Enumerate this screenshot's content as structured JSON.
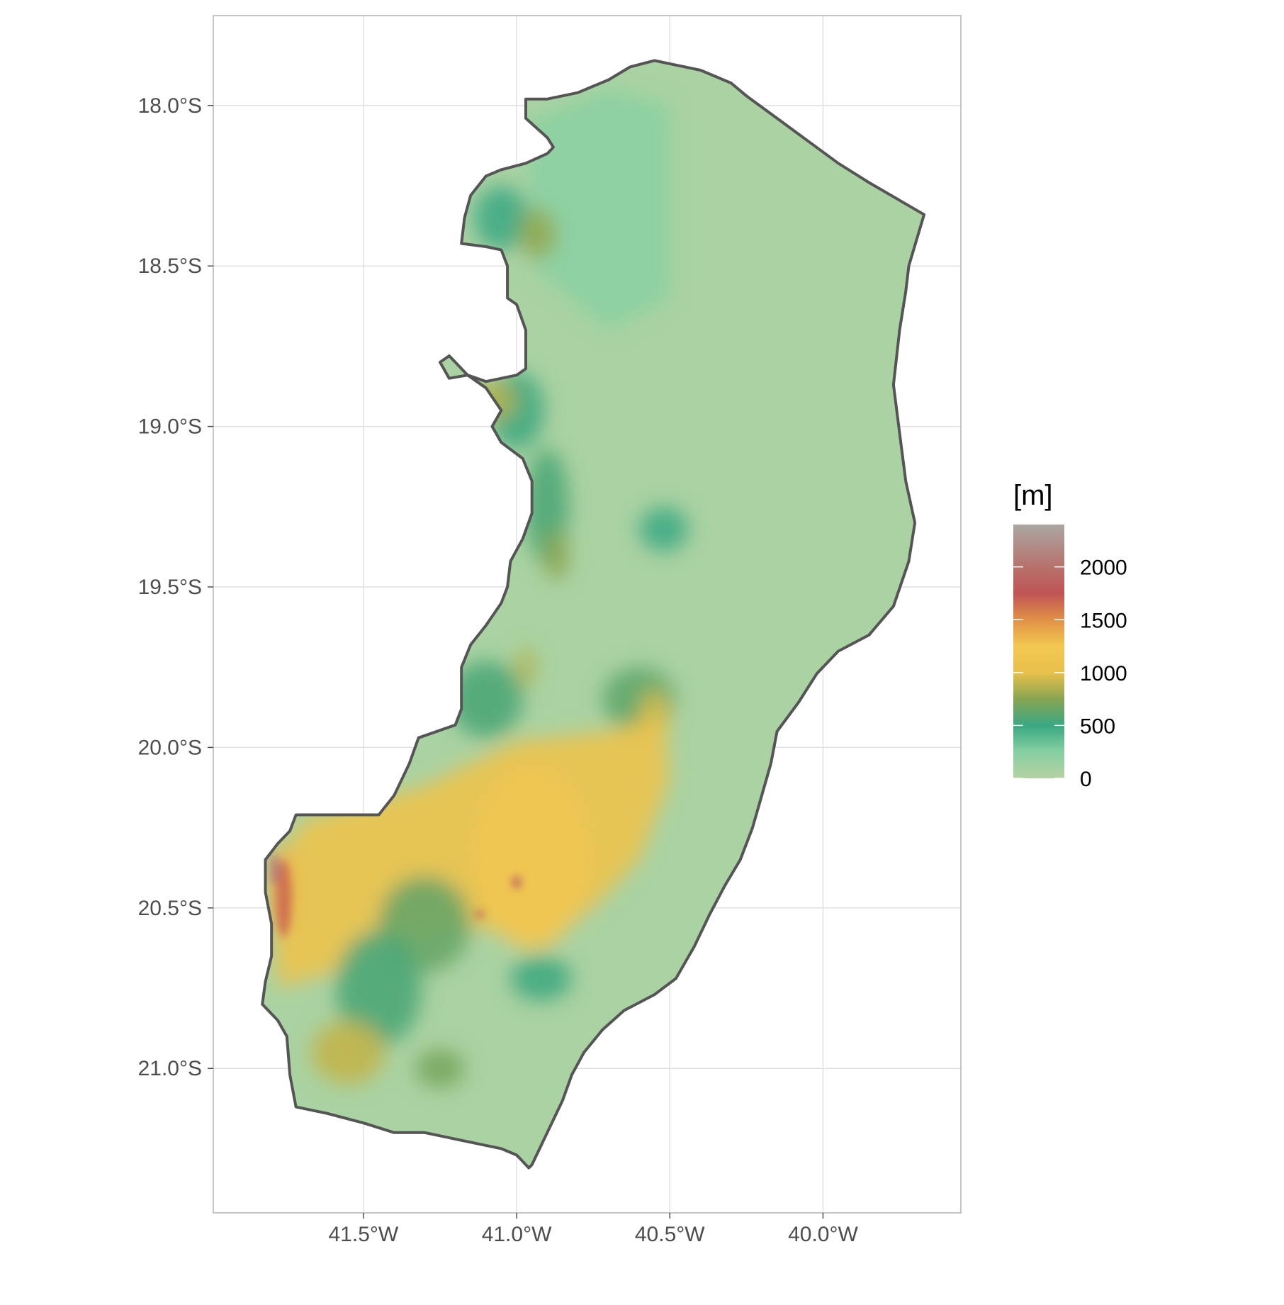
{
  "chart_data": {
    "type": "heatmap",
    "title": "",
    "xlabel": "",
    "ylabel": "",
    "x_ticks": [
      {
        "lon": -41.5,
        "label": "41.5°W"
      },
      {
        "lon": -41.0,
        "label": "41.0°W"
      },
      {
        "lon": -40.5,
        "label": "40.5°W"
      },
      {
        "lon": -40.0,
        "label": "40.0°W"
      }
    ],
    "y_ticks": [
      {
        "lat": -18.0,
        "label": "18.0°S"
      },
      {
        "lat": -18.5,
        "label": "18.5°S"
      },
      {
        "lat": -19.0,
        "label": "19.0°S"
      },
      {
        "lat": -19.5,
        "label": "19.5°S"
      },
      {
        "lat": -20.0,
        "label": "20.0°S"
      },
      {
        "lat": -20.5,
        "label": "20.5°S"
      },
      {
        "lat": -21.0,
        "label": "21.0°S"
      }
    ],
    "xlim": [
      -41.99,
      -39.55
    ],
    "ylim": [
      -21.45,
      -17.72
    ],
    "grid": true,
    "legend": {
      "title": "[m]",
      "position": "right",
      "min": 0,
      "max": 2400,
      "breaks": [
        {
          "value": 0,
          "label": "0"
        },
        {
          "value": 500,
          "label": "500"
        },
        {
          "value": 1000,
          "label": "1000"
        },
        {
          "value": 1500,
          "label": "1500"
        },
        {
          "value": 2000,
          "label": "2000"
        }
      ],
      "color_stops": [
        {
          "value": 0,
          "color": "#b5d2a2"
        },
        {
          "value": 250,
          "color": "#86d0a2"
        },
        {
          "value": 500,
          "color": "#3aa883"
        },
        {
          "value": 750,
          "color": "#88a552"
        },
        {
          "value": 1000,
          "color": "#e9c04c"
        },
        {
          "value": 1250,
          "color": "#f3c752"
        },
        {
          "value": 1500,
          "color": "#e19146"
        },
        {
          "value": 1750,
          "color": "#c05456"
        },
        {
          "value": 2000,
          "color": "#b7726b"
        },
        {
          "value": 2400,
          "color": "#aaa6a2"
        }
      ]
    },
    "boundary": [
      [
        -40.9,
        -17.98
      ],
      [
        -40.8,
        -17.96
      ],
      [
        -40.75,
        -17.94
      ],
      [
        -40.7,
        -17.92
      ],
      [
        -40.63,
        -17.88
      ],
      [
        -40.55,
        -17.86
      ],
      [
        -40.5,
        -17.87
      ],
      [
        -40.4,
        -17.89
      ],
      [
        -40.3,
        -17.93
      ],
      [
        -40.25,
        -17.97
      ],
      [
        -40.15,
        -18.04
      ],
      [
        -40.05,
        -18.11
      ],
      [
        -39.95,
        -18.18
      ],
      [
        -39.85,
        -18.24
      ],
      [
        -39.67,
        -18.34
      ],
      [
        -39.72,
        -18.5
      ],
      [
        -39.73,
        -18.58
      ],
      [
        -39.75,
        -18.7
      ],
      [
        -39.77,
        -18.87
      ],
      [
        -39.75,
        -19.02
      ],
      [
        -39.73,
        -19.17
      ],
      [
        -39.7,
        -19.3
      ],
      [
        -39.72,
        -19.42
      ],
      [
        -39.77,
        -19.56
      ],
      [
        -39.85,
        -19.65
      ],
      [
        -39.95,
        -19.7
      ],
      [
        -40.02,
        -19.77
      ],
      [
        -40.08,
        -19.86
      ],
      [
        -40.15,
        -19.95
      ],
      [
        -40.17,
        -20.05
      ],
      [
        -40.2,
        -20.15
      ],
      [
        -40.23,
        -20.25
      ],
      [
        -40.27,
        -20.35
      ],
      [
        -40.32,
        -20.43
      ],
      [
        -40.37,
        -20.52
      ],
      [
        -40.42,
        -20.62
      ],
      [
        -40.48,
        -20.72
      ],
      [
        -40.55,
        -20.77
      ],
      [
        -40.65,
        -20.82
      ],
      [
        -40.72,
        -20.88
      ],
      [
        -40.78,
        -20.95
      ],
      [
        -40.82,
        -21.02
      ],
      [
        -40.85,
        -21.1
      ],
      [
        -40.9,
        -21.2
      ],
      [
        -40.95,
        -21.3
      ],
      [
        -40.96,
        -21.31
      ],
      [
        -41.0,
        -21.27
      ],
      [
        -41.05,
        -21.25
      ],
      [
        -41.1,
        -21.24
      ],
      [
        -41.2,
        -21.22
      ],
      [
        -41.3,
        -21.2
      ],
      [
        -41.4,
        -21.2
      ],
      [
        -41.5,
        -21.17
      ],
      [
        -41.62,
        -21.14
      ],
      [
        -41.72,
        -21.12
      ],
      [
        -41.74,
        -21.02
      ],
      [
        -41.75,
        -20.9
      ],
      [
        -41.78,
        -20.85
      ],
      [
        -41.83,
        -20.8
      ],
      [
        -41.82,
        -20.73
      ],
      [
        -41.8,
        -20.65
      ],
      [
        -41.8,
        -20.55
      ],
      [
        -41.82,
        -20.45
      ],
      [
        -41.82,
        -20.35
      ],
      [
        -41.78,
        -20.3
      ],
      [
        -41.74,
        -20.26
      ],
      [
        -41.72,
        -20.21
      ],
      [
        -41.6,
        -20.21
      ],
      [
        -41.45,
        -20.21
      ],
      [
        -41.4,
        -20.15
      ],
      [
        -41.35,
        -20.05
      ],
      [
        -41.32,
        -19.97
      ],
      [
        -41.2,
        -19.93
      ],
      [
        -41.18,
        -19.88
      ],
      [
        -41.18,
        -19.75
      ],
      [
        -41.15,
        -19.68
      ],
      [
        -41.1,
        -19.62
      ],
      [
        -41.05,
        -19.55
      ],
      [
        -41.03,
        -19.5
      ],
      [
        -41.02,
        -19.42
      ],
      [
        -40.98,
        -19.35
      ],
      [
        -40.95,
        -19.27
      ],
      [
        -40.95,
        -19.17
      ],
      [
        -40.98,
        -19.1
      ],
      [
        -41.05,
        -19.05
      ],
      [
        -41.08,
        -19.0
      ],
      [
        -41.05,
        -18.95
      ],
      [
        -41.1,
        -18.88
      ],
      [
        -41.16,
        -18.84
      ],
      [
        -41.22,
        -18.85
      ],
      [
        -41.25,
        -18.8
      ],
      [
        -41.22,
        -18.78
      ],
      [
        -41.2,
        -18.8
      ],
      [
        -41.16,
        -18.84
      ],
      [
        -41.1,
        -18.86
      ],
      [
        -41.0,
        -18.84
      ],
      [
        -40.97,
        -18.82
      ],
      [
        -40.97,
        -18.7
      ],
      [
        -41.0,
        -18.62
      ],
      [
        -41.03,
        -18.6
      ],
      [
        -41.03,
        -18.5
      ],
      [
        -41.05,
        -18.45
      ],
      [
        -41.1,
        -18.44
      ],
      [
        -41.18,
        -18.43
      ],
      [
        -41.17,
        -18.35
      ],
      [
        -41.15,
        -18.28
      ],
      [
        -41.1,
        -18.22
      ],
      [
        -41.05,
        -18.2
      ],
      [
        -40.97,
        -18.18
      ],
      [
        -40.9,
        -18.15
      ],
      [
        -40.88,
        -18.13
      ],
      [
        -40.9,
        -18.1
      ],
      [
        -40.97,
        -18.04
      ],
      [
        -40.97,
        -17.98
      ]
    ],
    "regions": [
      {
        "elevation": 220,
        "shape": "polygon",
        "points": [
          [
            -40.97,
            -18.05
          ],
          [
            -40.7,
            -17.95
          ],
          [
            -40.5,
            -18.0
          ],
          [
            -40.5,
            -18.6
          ],
          [
            -40.7,
            -18.7
          ],
          [
            -40.95,
            -18.5
          ]
        ]
      },
      {
        "elevation": 480,
        "shape": "ellipse",
        "center": [
          -41.05,
          -18.35
        ],
        "radius": [
          0.09,
          0.1
        ]
      },
      {
        "elevation": 780,
        "shape": "ellipse",
        "center": [
          -40.93,
          -18.4
        ],
        "radius": [
          0.06,
          0.08
        ]
      },
      {
        "elevation": 520,
        "shape": "ellipse",
        "center": [
          -41.0,
          -18.95
        ],
        "radius": [
          0.09,
          0.12
        ]
      },
      {
        "elevation": 860,
        "shape": "ellipse",
        "center": [
          -41.08,
          -18.92
        ],
        "radius": [
          0.08,
          0.06
        ]
      },
      {
        "elevation": 560,
        "shape": "ellipse",
        "center": [
          -40.9,
          -19.25
        ],
        "radius": [
          0.07,
          0.18
        ]
      },
      {
        "elevation": 760,
        "shape": "ellipse",
        "center": [
          -40.87,
          -19.4
        ],
        "radius": [
          0.04,
          0.08
        ]
      },
      {
        "elevation": 480,
        "shape": "ellipse",
        "center": [
          -40.52,
          -19.32
        ],
        "radius": [
          0.08,
          0.07
        ]
      },
      {
        "elevation": 560,
        "shape": "ellipse",
        "center": [
          -41.1,
          -19.85
        ],
        "radius": [
          0.12,
          0.12
        ]
      },
      {
        "elevation": 860,
        "shape": "ellipse",
        "center": [
          -40.97,
          -19.75
        ],
        "radius": [
          0.03,
          0.06
        ]
      },
      {
        "elevation": 620,
        "shape": "ellipse",
        "center": [
          -40.6,
          -19.85
        ],
        "radius": [
          0.12,
          0.1
        ]
      },
      {
        "elevation": 940,
        "shape": "ellipse",
        "center": [
          -40.55,
          -19.9
        ],
        "radius": [
          0.05,
          0.08
        ]
      },
      {
        "elevation": 1100,
        "shape": "polygon",
        "points": [
          [
            -41.7,
            -20.23
          ],
          [
            -41.3,
            -20.12
          ],
          [
            -41.0,
            -19.98
          ],
          [
            -40.7,
            -19.95
          ],
          [
            -40.52,
            -19.9
          ],
          [
            -40.5,
            -20.1
          ],
          [
            -40.6,
            -20.35
          ],
          [
            -40.75,
            -20.5
          ],
          [
            -40.9,
            -20.6
          ],
          [
            -41.2,
            -20.55
          ],
          [
            -41.4,
            -20.6
          ],
          [
            -41.6,
            -20.7
          ],
          [
            -41.78,
            -20.75
          ],
          [
            -41.8,
            -20.4
          ]
        ]
      },
      {
        "elevation": 1220,
        "shape": "ellipse",
        "center": [
          -40.95,
          -20.35
        ],
        "radius": [
          0.18,
          0.28
        ]
      },
      {
        "elevation": 650,
        "shape": "ellipse",
        "center": [
          -41.3,
          -20.55
        ],
        "radius": [
          0.15,
          0.15
        ]
      },
      {
        "elevation": 560,
        "shape": "ellipse",
        "center": [
          -41.45,
          -20.75
        ],
        "radius": [
          0.14,
          0.18
        ]
      },
      {
        "elevation": 900,
        "shape": "ellipse",
        "center": [
          -41.55,
          -20.95
        ],
        "radius": [
          0.12,
          0.1
        ]
      },
      {
        "elevation": 700,
        "shape": "ellipse",
        "center": [
          -41.25,
          -21.0
        ],
        "radius": [
          0.08,
          0.06
        ]
      },
      {
        "elevation": 520,
        "shape": "ellipse",
        "center": [
          -40.92,
          -20.72
        ],
        "radius": [
          0.1,
          0.07
        ]
      },
      {
        "elevation": 1350,
        "shape": "ellipse",
        "center": [
          -41.77,
          -20.45
        ],
        "radius": [
          0.04,
          0.15
        ]
      },
      {
        "elevation": 1650,
        "shape": "ellipse",
        "center": [
          -41.76,
          -20.47
        ],
        "radius": [
          0.025,
          0.12
        ]
      },
      {
        "elevation": 2100,
        "shape": "ellipse",
        "center": [
          -41.79,
          -20.38
        ],
        "radius": [
          0.015,
          0.05
        ]
      },
      {
        "elevation": 1850,
        "shape": "ellipse",
        "center": [
          -41.0,
          -20.42
        ],
        "radius": [
          0.015,
          0.02
        ]
      },
      {
        "elevation": 1750,
        "shape": "ellipse",
        "center": [
          -41.12,
          -20.52
        ],
        "radius": [
          0.015,
          0.01
        ]
      }
    ]
  }
}
